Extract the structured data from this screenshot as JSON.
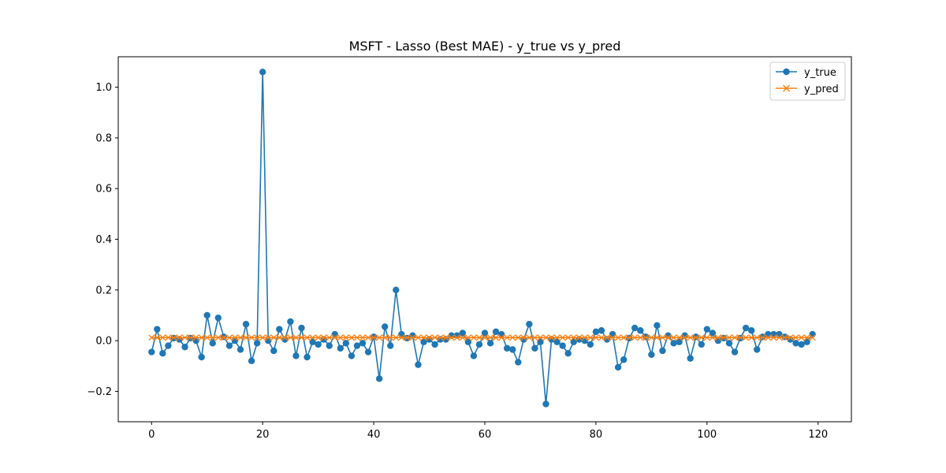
{
  "chart_data": {
    "type": "line",
    "title": "MSFT - Lasso (Best MAE) - y_true vs y_pred",
    "xlabel": "",
    "ylabel": "",
    "xlim": [
      -6,
      126
    ],
    "ylim": [
      -0.32,
      1.12
    ],
    "x_ticks": [
      0,
      20,
      40,
      60,
      80,
      100,
      120
    ],
    "x_tick_labels": [
      "0",
      "20",
      "40",
      "60",
      "80",
      "100",
      "120"
    ],
    "y_ticks": [
      -0.2,
      0.0,
      0.2,
      0.4,
      0.6,
      0.8,
      1.0
    ],
    "y_tick_labels": [
      "−0.2",
      "0.0",
      "0.2",
      "0.4",
      "0.6",
      "0.8",
      "1.0"
    ],
    "grid": false,
    "legend_position": "top-right",
    "series": [
      {
        "name": "y_true",
        "color": "#1f77b4",
        "marker": "circle",
        "values": [
          -0.045,
          0.045,
          -0.05,
          -0.02,
          0.01,
          0.005,
          -0.025,
          0.01,
          0.0,
          -0.065,
          0.1,
          -0.01,
          0.09,
          0.015,
          -0.02,
          0.0,
          -0.035,
          0.065,
          -0.08,
          -0.01,
          1.06,
          0.0,
          -0.04,
          0.045,
          0.005,
          0.075,
          -0.06,
          0.05,
          -0.065,
          -0.005,
          -0.015,
          0.005,
          -0.02,
          0.025,
          -0.03,
          -0.01,
          -0.06,
          -0.02,
          -0.01,
          -0.045,
          0.015,
          -0.15,
          0.055,
          -0.02,
          0.2,
          0.025,
          0.01,
          0.02,
          -0.095,
          -0.005,
          0.005,
          -0.015,
          0.005,
          0.005,
          0.02,
          0.02,
          0.03,
          -0.005,
          -0.06,
          -0.015,
          0.03,
          -0.01,
          0.035,
          0.025,
          -0.03,
          -0.035,
          -0.085,
          0.005,
          0.065,
          -0.03,
          -0.005,
          -0.25,
          0.005,
          -0.005,
          -0.02,
          -0.05,
          -0.005,
          0.005,
          0.0,
          -0.015,
          0.035,
          0.04,
          0.005,
          0.025,
          -0.105,
          -0.075,
          0.01,
          0.05,
          0.04,
          0.015,
          -0.055,
          0.06,
          -0.04,
          0.02,
          -0.01,
          -0.005,
          0.02,
          -0.07,
          0.015,
          -0.015,
          0.045,
          0.03,
          0.0,
          0.01,
          -0.01,
          -0.045,
          0.01,
          0.05,
          0.04,
          -0.035,
          0.015,
          0.025,
          0.025,
          0.025,
          0.015,
          0.005,
          -0.01,
          -0.015,
          -0.005,
          0.025
        ]
      },
      {
        "name": "y_pred",
        "color": "#ff7f0e",
        "marker": "x",
        "values": [
          0.012,
          0.012,
          0.012,
          0.012,
          0.012,
          0.012,
          0.012,
          0.012,
          0.012,
          0.012,
          0.012,
          0.012,
          0.012,
          0.012,
          0.012,
          0.012,
          0.012,
          0.012,
          0.012,
          0.012,
          0.012,
          0.012,
          0.012,
          0.012,
          0.012,
          0.012,
          0.012,
          0.012,
          0.012,
          0.012,
          0.012,
          0.012,
          0.012,
          0.012,
          0.012,
          0.012,
          0.012,
          0.012,
          0.012,
          0.012,
          0.012,
          0.012,
          0.012,
          0.012,
          0.012,
          0.012,
          0.012,
          0.012,
          0.012,
          0.012,
          0.012,
          0.012,
          0.012,
          0.012,
          0.012,
          0.012,
          0.012,
          0.012,
          0.012,
          0.012,
          0.012,
          0.012,
          0.012,
          0.012,
          0.012,
          0.012,
          0.012,
          0.012,
          0.012,
          0.012,
          0.012,
          0.012,
          0.012,
          0.012,
          0.012,
          0.012,
          0.012,
          0.012,
          0.012,
          0.012,
          0.012,
          0.012,
          0.012,
          0.012,
          0.012,
          0.012,
          0.012,
          0.012,
          0.012,
          0.012,
          0.012,
          0.012,
          0.012,
          0.012,
          0.012,
          0.012,
          0.012,
          0.012,
          0.012,
          0.012,
          0.012,
          0.012,
          0.012,
          0.012,
          0.012,
          0.012,
          0.012,
          0.012,
          0.012,
          0.012,
          0.012,
          0.012,
          0.012,
          0.012,
          0.012,
          0.012,
          0.012,
          0.012,
          0.012,
          0.012
        ]
      }
    ]
  }
}
